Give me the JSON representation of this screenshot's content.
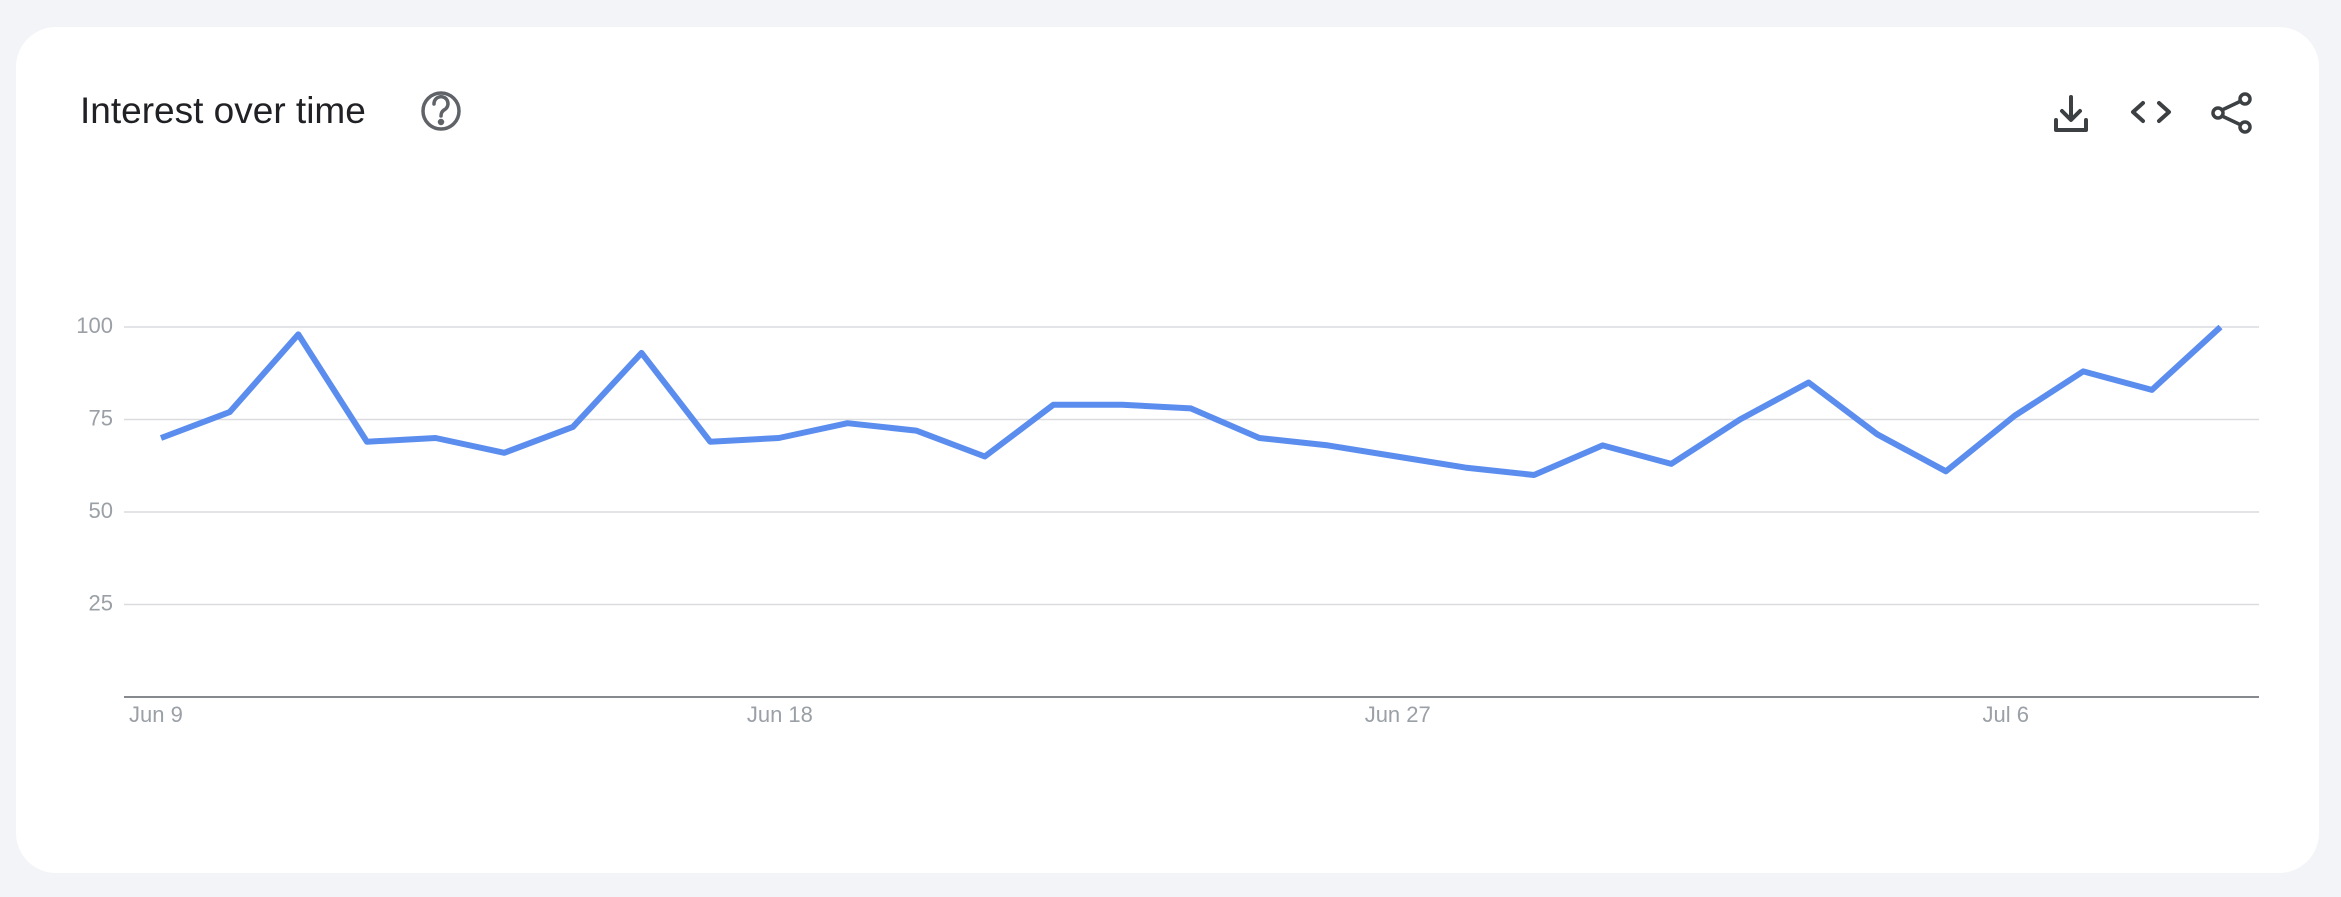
{
  "chart_data": {
    "type": "line",
    "title": "Interest over time",
    "categories": [
      "Jun 9",
      null,
      null,
      null,
      null,
      null,
      null,
      null,
      null,
      "Jun 18",
      null,
      null,
      null,
      null,
      null,
      null,
      null,
      null,
      "Jun 27",
      null,
      null,
      null,
      null,
      null,
      null,
      null,
      null,
      "Jul 6",
      null,
      null,
      null
    ],
    "values": [
      70,
      77,
      98,
      69,
      70,
      66,
      73,
      93,
      69,
      70,
      74,
      72,
      65,
      79,
      79,
      78,
      70,
      68,
      65,
      62,
      60,
      68,
      63,
      75,
      85,
      71,
      61,
      76,
      88,
      83,
      100
    ],
    "color": "#5b8def",
    "ylim": [
      0,
      100
    ],
    "yticks": [
      25,
      50,
      75,
      100
    ],
    "grid": true
  }
}
